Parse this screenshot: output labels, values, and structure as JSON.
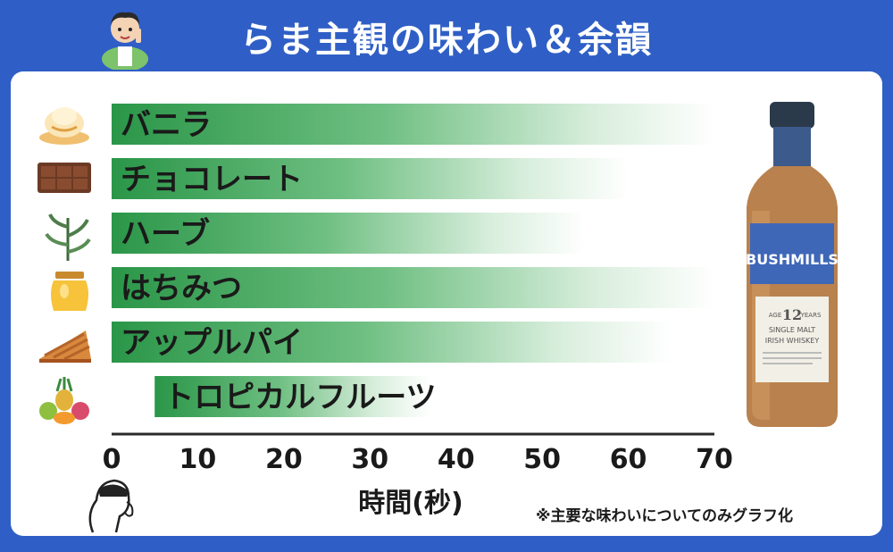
{
  "header": {
    "title": "らま主観の味わい＆余韻"
  },
  "footnote": "※主要な味わいについてのみグラフ化",
  "bottle": {
    "brand": "BUSHMILLS",
    "age": "12",
    "age_word": "AGE",
    "age_unit": "YEARS",
    "style_line1": "SINGLE MALT",
    "style_line2": "IRISH WHISKEY"
  },
  "colors": {
    "header_bg": "#2f5fc6",
    "bar_green": "#2f9e4f",
    "bottle_label": "#3f67b8",
    "liquid": "#b9814d"
  },
  "chart_data": {
    "type": "bar",
    "orientation": "horizontal",
    "categories": [
      "バニラ",
      "チョコレート",
      "ハーブ",
      "はちみつ",
      "アップルパイ",
      "トロピカルフルーツ"
    ],
    "icons": [
      "vanilla-icecream-icon",
      "chocolate-icon",
      "herb-icon",
      "honey-jar-icon",
      "apple-pie-icon",
      "tropical-fruits-icon"
    ],
    "start": [
      0,
      0,
      0,
      0,
      0,
      5
    ],
    "values": [
      70,
      60,
      55,
      70,
      65,
      37
    ],
    "xlim": [
      0,
      70
    ],
    "xticks": [
      0,
      10,
      20,
      30,
      40,
      50,
      60,
      70
    ],
    "xlabel": "時間(秒)",
    "style": "gradient bars fading from green to white"
  }
}
